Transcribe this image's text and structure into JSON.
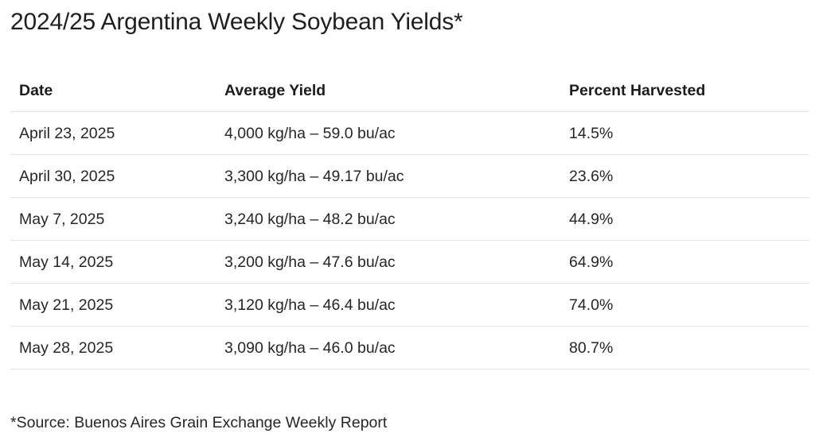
{
  "title": "2024/25 Argentina Weekly Soybean Yields*",
  "table": {
    "headers": [
      "Date",
      "Average Yield",
      "Percent Harvested"
    ],
    "rows": [
      [
        "April 23, 2025",
        "4,000 kg/ha – 59.0 bu/ac",
        "14.5%"
      ],
      [
        "April 30, 2025",
        "3,300 kg/ha – 49.17 bu/ac",
        "23.6%"
      ],
      [
        "May 7, 2025",
        "3,240 kg/ha – 48.2 bu/ac",
        "44.9%"
      ],
      [
        "May 14, 2025",
        "3,200 kg/ha – 47.6 bu/ac",
        "64.9%"
      ],
      [
        "May 21, 2025",
        "3,120 kg/ha – 46.4 bu/ac",
        "74.0%"
      ],
      [
        "May 28, 2025",
        "3,090 kg/ha – 46.0 bu/ac",
        "80.7%"
      ]
    ]
  },
  "footnote": "*Source: Buenos Aires Grain Exchange Weekly Report"
}
